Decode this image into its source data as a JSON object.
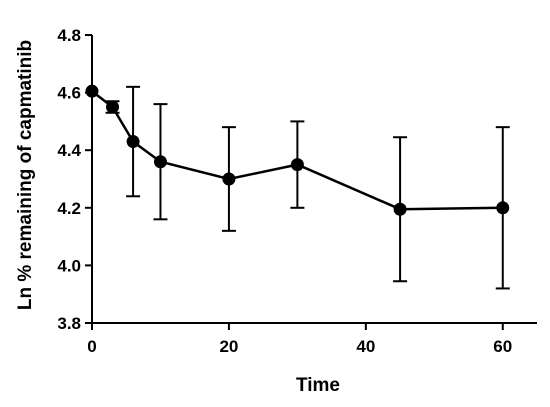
{
  "chart_data": {
    "type": "line",
    "title": "",
    "xlabel": "Time",
    "ylabel": "Ln % remaining of capmatinib",
    "xlim": [
      0,
      65
    ],
    "ylim": [
      3.8,
      4.8
    ],
    "x_ticks": [
      0,
      20,
      40,
      60
    ],
    "x_tick_labels": [
      "0",
      "20",
      "40",
      "60"
    ],
    "y_ticks": [
      3.8,
      4.0,
      4.2,
      4.4,
      4.6,
      4.8
    ],
    "y_tick_labels": [
      "3.8",
      "4.0",
      "4.2",
      "4.4",
      "4.6",
      "4.8"
    ],
    "grid": false,
    "legend": "none",
    "series": [
      {
        "color": "#000000",
        "marker": "circle",
        "points": [
          {
            "x": 0,
            "y": 4.605,
            "err": 0.0
          },
          {
            "x": 3,
            "y": 4.55,
            "err": 0.02
          },
          {
            "x": 6,
            "y": 4.43,
            "err": 0.19
          },
          {
            "x": 10,
            "y": 4.36,
            "err": 0.2
          },
          {
            "x": 20,
            "y": 4.3,
            "err": 0.18
          },
          {
            "x": 30,
            "y": 4.35,
            "err": 0.15
          },
          {
            "x": 45,
            "y": 4.195,
            "err": 0.25
          },
          {
            "x": 60,
            "y": 4.2,
            "err": 0.28
          }
        ]
      }
    ]
  }
}
